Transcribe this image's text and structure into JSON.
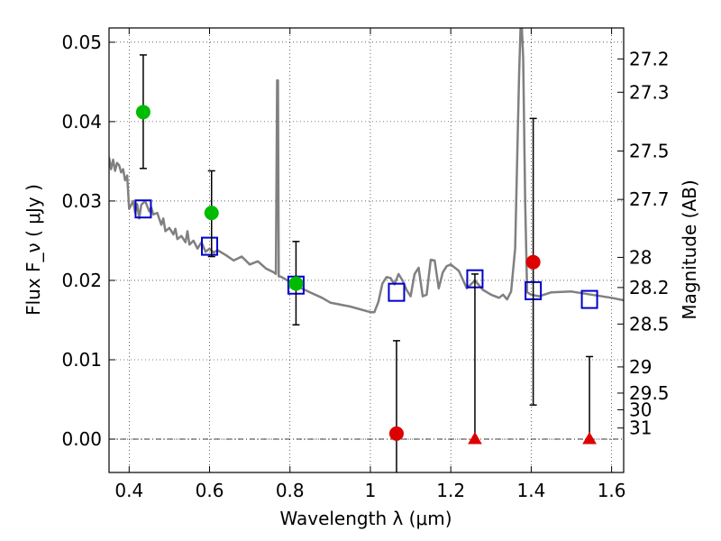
{
  "chart_data": {
    "type": "scatter",
    "xlabel": "Wavelength  λ (μm)",
    "ylabel_left": "Flux  F_ν  ( μJy )",
    "ylabel_right": "Magnitude (AB)",
    "xlim": [
      0.35,
      1.63
    ],
    "ylim": [
      -0.0042,
      0.0518
    ],
    "grid": true,
    "x_ticks": [
      0.4,
      0.6,
      0.8,
      1.0,
      1.2,
      1.4,
      1.6
    ],
    "x_tick_labels": [
      "0.4",
      "0.6",
      "0.8",
      "1",
      "1.2",
      "1.4",
      "1.6"
    ],
    "y_ticks": [
      0.0,
      0.01,
      0.02,
      0.03,
      0.04,
      0.05
    ],
    "y_tick_labels": [
      "0.00",
      "0.01",
      "0.02",
      "0.03",
      "0.04",
      "0.05"
    ],
    "right_ticks": [
      {
        "label": "27.2",
        "flux": 0.0479
      },
      {
        "label": "27.3",
        "flux": 0.0437
      },
      {
        "label": "27.5",
        "flux": 0.0363
      },
      {
        "label": "27.7",
        "flux": 0.0302
      },
      {
        "label": "28",
        "flux": 0.0229
      },
      {
        "label": "28.2",
        "flux": 0.0191
      },
      {
        "label": "28.5",
        "flux": 0.0145
      },
      {
        "label": "29",
        "flux": 0.0091
      },
      {
        "label": "29.5",
        "flux": 0.0058
      },
      {
        "label": "30",
        "flux": 0.0037
      },
      {
        "label": "31",
        "flux": 0.0014
      }
    ],
    "series": [
      {
        "type": "line",
        "color": "#808080",
        "x": [
          0.35,
          0.355,
          0.36,
          0.365,
          0.37,
          0.375,
          0.38,
          0.385,
          0.39,
          0.395,
          0.4,
          0.41,
          0.415,
          0.42,
          0.425,
          0.43,
          0.44,
          0.45,
          0.455,
          0.46,
          0.47,
          0.48,
          0.485,
          0.49,
          0.5,
          0.51,
          0.515,
          0.52,
          0.53,
          0.54,
          0.545,
          0.55,
          0.56,
          0.57,
          0.58,
          0.59,
          0.6,
          0.61,
          0.62,
          0.64,
          0.66,
          0.68,
          0.7,
          0.72,
          0.74,
          0.76,
          0.765,
          0.768,
          0.77,
          0.772,
          0.775,
          0.78,
          0.8,
          0.82,
          0.85,
          0.88,
          0.9,
          0.95,
          1.0,
          1.01,
          1.02,
          1.03,
          1.04,
          1.05,
          1.06,
          1.07,
          1.08,
          1.09,
          1.1,
          1.11,
          1.12,
          1.13,
          1.14,
          1.15,
          1.16,
          1.17,
          1.18,
          1.19,
          1.2,
          1.22,
          1.24,
          1.26,
          1.28,
          1.3,
          1.32,
          1.33,
          1.34,
          1.35,
          1.36,
          1.37,
          1.375,
          1.38,
          1.385,
          1.39,
          1.4,
          1.42,
          1.45,
          1.5,
          1.55,
          1.6,
          1.63
        ],
        "y": [
          0.0355,
          0.034,
          0.0352,
          0.0338,
          0.0348,
          0.0345,
          0.0336,
          0.034,
          0.0326,
          0.0332,
          0.029,
          0.03,
          0.0285,
          0.0296,
          0.0278,
          0.0295,
          0.03,
          0.0287,
          0.0292,
          0.0283,
          0.0285,
          0.027,
          0.0278,
          0.0262,
          0.0266,
          0.0258,
          0.0265,
          0.0252,
          0.0256,
          0.0248,
          0.0262,
          0.0245,
          0.025,
          0.024,
          0.0248,
          0.0236,
          0.024,
          0.0235,
          0.0238,
          0.0232,
          0.0225,
          0.023,
          0.022,
          0.0224,
          0.0215,
          0.021,
          0.0208,
          0.0452,
          0.0452,
          0.0205,
          0.0205,
          0.0204,
          0.0198,
          0.0192,
          0.0185,
          0.0178,
          0.0172,
          0.0167,
          0.016,
          0.016,
          0.0173,
          0.0196,
          0.0204,
          0.0203,
          0.0195,
          0.0208,
          0.02,
          0.0188,
          0.018,
          0.0208,
          0.0216,
          0.018,
          0.0182,
          0.0226,
          0.0225,
          0.019,
          0.021,
          0.0218,
          0.022,
          0.0212,
          0.019,
          0.02,
          0.0188,
          0.0182,
          0.0178,
          0.0182,
          0.0176,
          0.0186,
          0.024,
          0.046,
          0.054,
          0.048,
          0.03,
          0.0185,
          0.0182,
          0.018,
          0.0185,
          0.0186,
          0.0182,
          0.0178,
          0.0175
        ]
      },
      {
        "type": "scatter",
        "marker": "square-open",
        "color": "#0000cc",
        "x": [
          0.435,
          0.6,
          0.815,
          1.065,
          1.26,
          1.405,
          1.545
        ],
        "y": [
          0.029,
          0.0243,
          0.0194,
          0.0185,
          0.0202,
          0.0187,
          0.0176
        ]
      },
      {
        "type": "scatter",
        "marker": "circle",
        "color": "#00bb00",
        "x": [
          0.435,
          0.605,
          0.815
        ],
        "y": [
          0.0412,
          0.0285,
          0.0196
        ],
        "yerr_low": [
          0.0341,
          0.023,
          0.0144
        ],
        "yerr_high": [
          0.0484,
          0.0338,
          0.0249
        ]
      },
      {
        "type": "scatter",
        "marker": "circle",
        "color": "#dd0000",
        "x": [
          1.065,
          1.405
        ],
        "y": [
          0.0007,
          0.0223
        ],
        "yerr_low": [
          -0.0045,
          0.0043
        ],
        "yerr_high": [
          0.0124,
          0.0404
        ]
      },
      {
        "type": "scatter",
        "marker": "triangle-up",
        "color": "#dd0000",
        "x": [
          1.26,
          1.545
        ],
        "y": [
          0.0,
          0.0
        ],
        "yerr_low": [
          0.0,
          0.0
        ],
        "yerr_high": [
          0.0208,
          0.0104
        ]
      }
    ]
  }
}
